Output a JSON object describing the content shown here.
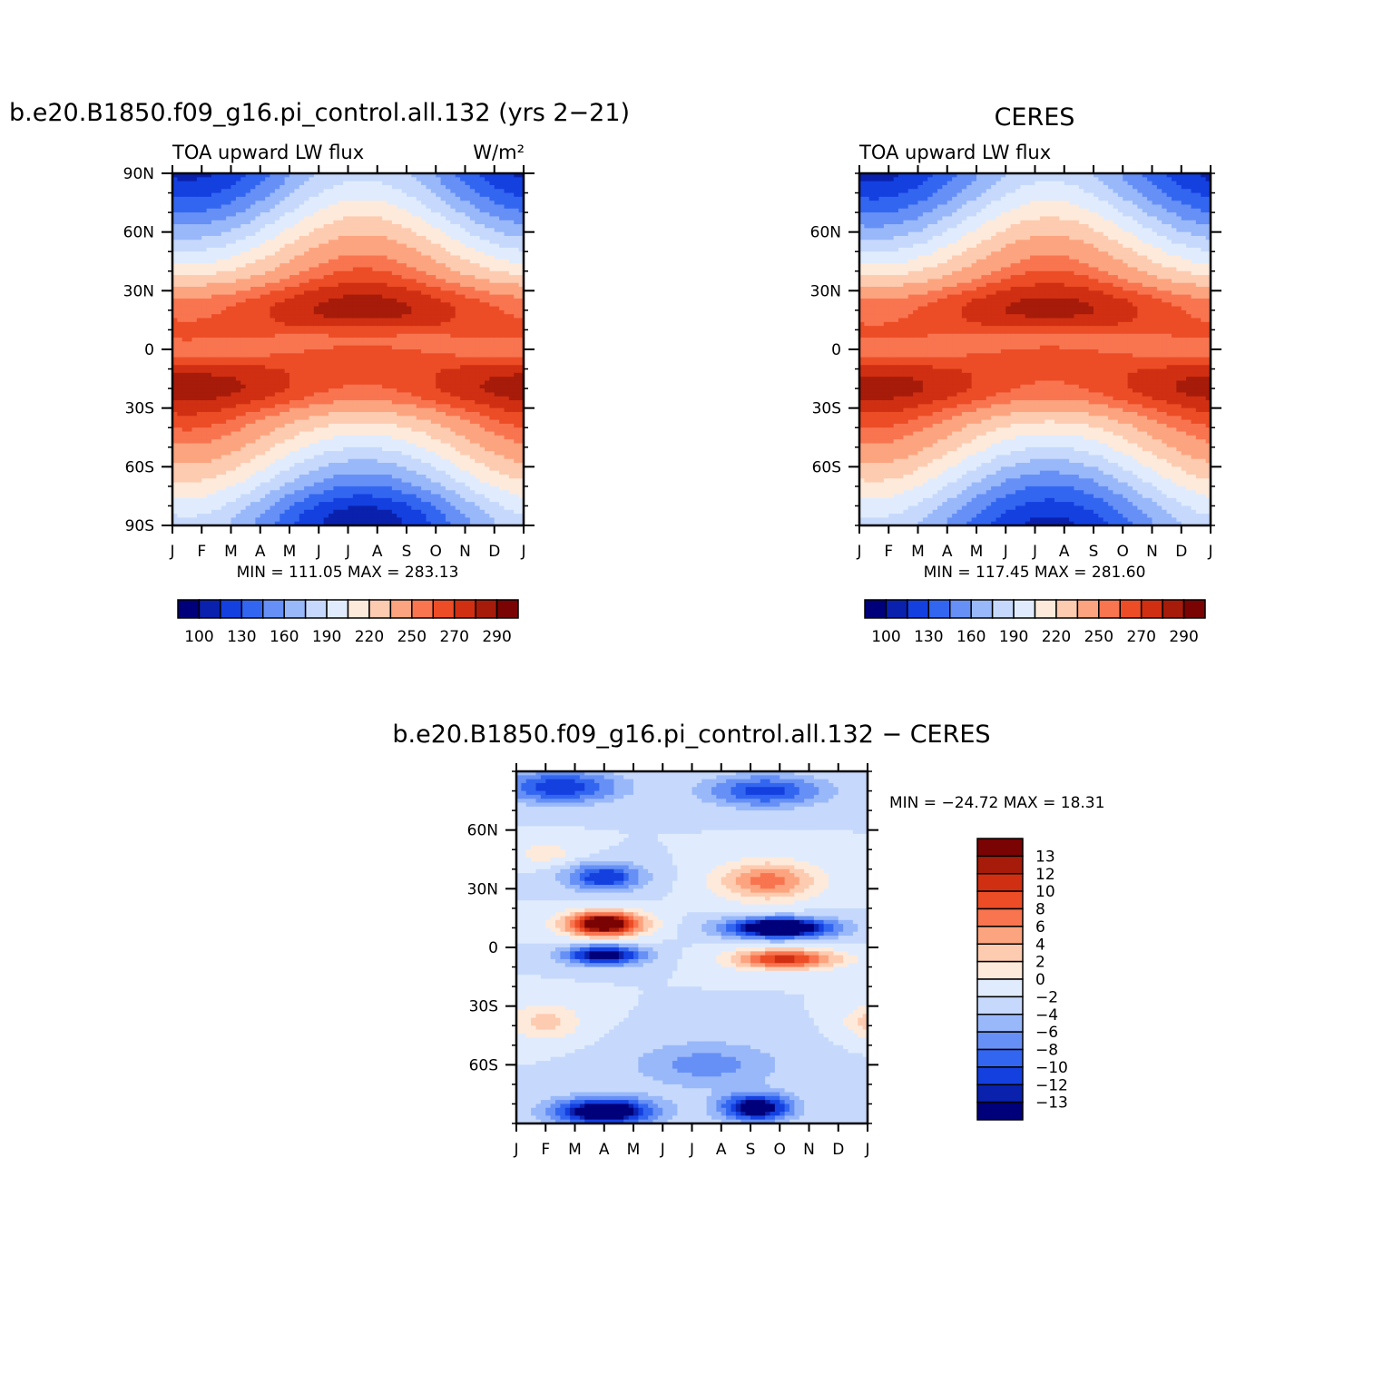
{
  "colors": {
    "full_scale": [
      "#00007a",
      "#0a21ad",
      "#1440e0",
      "#3366f0",
      "#6690f5",
      "#99b8fa",
      "#c6d9fc",
      "#e0ecfd",
      "#feeadb",
      "#fdcbb0",
      "#fca47f",
      "#f87550",
      "#ec4d26",
      "#d02f12",
      "#a61b0a",
      "#7a0303"
    ],
    "diff_scale": [
      "#00007a",
      "#0a21ad",
      "#1440e0",
      "#3366f0",
      "#6690f5",
      "#99b8fa",
      "#c6d9fc",
      "#e0ecfd",
      "#feeadb",
      "#fdcbb0",
      "#fca47f",
      "#f87550",
      "#ec4d26",
      "#d02f12",
      "#a61b0a",
      "#7a0303"
    ]
  },
  "chart_data": [
    {
      "type": "heatmap",
      "title": "b.e20.B1850.f09_g16.pi_control.all.132 (yrs 2−21)",
      "left_label": "TOA upward LW flux",
      "right_label": "W/m²",
      "x_tick_labels": [
        "J",
        "F",
        "M",
        "A",
        "M",
        "J",
        "J",
        "A",
        "S",
        "O",
        "N",
        "D",
        "J"
      ],
      "y_tick_labels": [
        "90N",
        "60N",
        "30N",
        "0",
        "30S",
        "60S",
        "90S"
      ],
      "y_ticks": [
        90,
        60,
        30,
        0,
        -30,
        -60,
        -90
      ],
      "ylim": [
        -90,
        90
      ],
      "minmax": "MIN = 111.05 MAX = 283.13",
      "min": 111.05,
      "max": 283.13,
      "levels": [
        100,
        115,
        130,
        145,
        160,
        175,
        190,
        205,
        220,
        235,
        250,
        260,
        270,
        280,
        290
      ],
      "colorbar_labels": [
        "100",
        "130",
        "160",
        "190",
        "220",
        "250",
        "270",
        "290"
      ]
    },
    {
      "type": "heatmap",
      "title": "CERES",
      "left_label": "TOA upward LW flux",
      "right_label": "",
      "x_tick_labels": [
        "J",
        "F",
        "M",
        "A",
        "M",
        "J",
        "J",
        "A",
        "S",
        "O",
        "N",
        "D",
        "J"
      ],
      "y_tick_labels": [
        "60N",
        "30N",
        "0",
        "30S",
        "60S"
      ],
      "y_ticks": [
        60,
        30,
        0,
        -30,
        -60
      ],
      "ylim": [
        -90,
        90
      ],
      "minmax": "MIN = 117.45 MAX = 281.60",
      "min": 117.45,
      "max": 281.6,
      "levels": [
        100,
        115,
        130,
        145,
        160,
        175,
        190,
        205,
        220,
        235,
        250,
        260,
        270,
        280,
        290
      ],
      "colorbar_labels": [
        "100",
        "130",
        "160",
        "190",
        "220",
        "250",
        "270",
        "290"
      ]
    },
    {
      "type": "heatmap",
      "title": "b.e20.B1850.f09_g16.pi_control.all.132 − CERES",
      "x_tick_labels": [
        "J",
        "F",
        "M",
        "A",
        "M",
        "J",
        "J",
        "A",
        "S",
        "O",
        "N",
        "D",
        "J"
      ],
      "y_tick_labels": [
        "60N",
        "30N",
        "0",
        "30S",
        "60S"
      ],
      "y_ticks": [
        60,
        30,
        0,
        -30,
        -60
      ],
      "ylim": [
        -90,
        90
      ],
      "minmax": "MIN = −24.72 MAX =   18.31",
      "min": -24.72,
      "max": 18.31,
      "levels": [
        -13,
        -12,
        -10,
        -8,
        -6,
        -4,
        -2,
        0,
        2,
        4,
        6,
        8,
        10,
        12,
        13
      ],
      "colorbar_labels": [
        "13",
        "12",
        "10",
        "8",
        "6",
        "4",
        "2",
        "0",
        "−2",
        "−4",
        "−6",
        "−8",
        "−10",
        "−12",
        "−13"
      ]
    }
  ]
}
